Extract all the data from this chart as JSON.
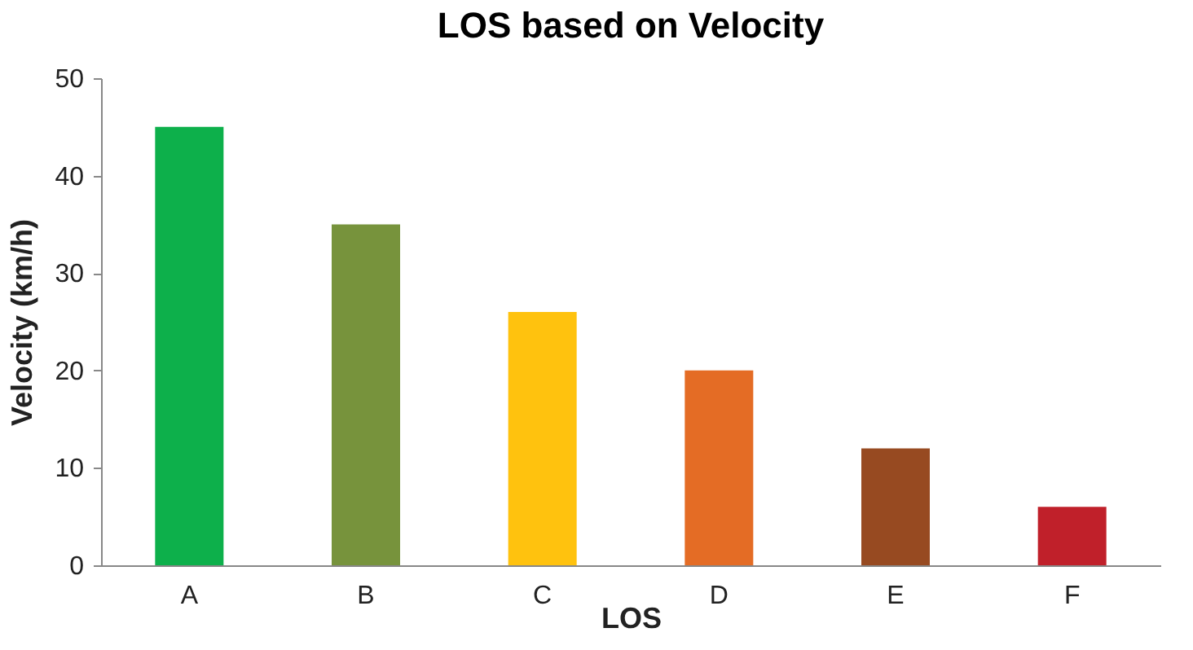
{
  "chart_data": {
    "type": "bar",
    "title": "LOS based on Velocity",
    "xlabel": "LOS",
    "ylabel": "Velocity (km/h)",
    "categories": [
      "A",
      "B",
      "C",
      "D",
      "E",
      "F"
    ],
    "values": [
      45,
      35,
      26,
      20,
      12,
      6
    ],
    "colors": [
      "#0db04b",
      "#77933c",
      "#ffc20e",
      "#e46c25",
      "#974a21",
      "#c0202a"
    ],
    "ylim": [
      0,
      50
    ],
    "yticks": [
      0,
      10,
      20,
      30,
      40,
      50
    ],
    "grid": false,
    "legend": false
  }
}
